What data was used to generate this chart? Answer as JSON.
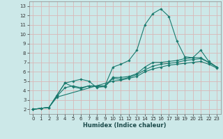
{
  "xlabel": "Humidex (Indice chaleur)",
  "ylabel": "",
  "xlim": [
    -0.5,
    23.5
  ],
  "ylim": [
    1.5,
    13.5
  ],
  "xticks": [
    0,
    1,
    2,
    3,
    4,
    5,
    6,
    7,
    8,
    9,
    10,
    11,
    12,
    13,
    14,
    15,
    16,
    17,
    18,
    19,
    20,
    21,
    22,
    23
  ],
  "yticks": [
    2,
    3,
    4,
    5,
    6,
    7,
    8,
    9,
    10,
    11,
    12,
    13
  ],
  "bg_color": "#cce8e8",
  "grid_color": "#d8b8b8",
  "line_color": "#1a7a6e",
  "series": [
    {
      "x": [
        0,
        1,
        2,
        3,
        4,
        5,
        6,
        7,
        8,
        9,
        10,
        11,
        12,
        13,
        14,
        15,
        16,
        17,
        18,
        19,
        20,
        21,
        22,
        23
      ],
      "y": [
        2.0,
        2.1,
        2.2,
        3.5,
        4.8,
        5.0,
        5.2,
        5.0,
        4.3,
        4.5,
        6.5,
        6.8,
        7.2,
        8.3,
        11.0,
        12.2,
        12.7,
        11.9,
        9.3,
        7.6,
        7.5,
        8.3,
        7.1,
        6.5
      ]
    },
    {
      "x": [
        0,
        1,
        2,
        3,
        4,
        5,
        6,
        7,
        8,
        9,
        10,
        11,
        12,
        13,
        14,
        15,
        16,
        17,
        18,
        19,
        20,
        21,
        22,
        23
      ],
      "y": [
        2.0,
        2.1,
        2.2,
        3.5,
        4.8,
        4.4,
        4.2,
        4.5,
        4.5,
        4.5,
        5.4,
        5.4,
        5.5,
        5.8,
        6.5,
        7.0,
        7.0,
        7.1,
        7.2,
        7.4,
        7.5,
        7.5,
        7.0,
        6.5
      ]
    },
    {
      "x": [
        0,
        1,
        2,
        3,
        4,
        5,
        6,
        7,
        8,
        9,
        10,
        11,
        12,
        13,
        14,
        15,
        16,
        17,
        18,
        19,
        20,
        21,
        22,
        23
      ],
      "y": [
        2.0,
        2.1,
        2.2,
        3.4,
        4.3,
        4.5,
        4.3,
        4.5,
        4.4,
        4.4,
        5.3,
        5.2,
        5.4,
        5.7,
        6.2,
        6.6,
        6.8,
        6.9,
        7.0,
        7.2,
        7.3,
        7.4,
        7.0,
        6.5
      ]
    },
    {
      "x": [
        0,
        2,
        3,
        10,
        11,
        12,
        13,
        14,
        15,
        16,
        17,
        18,
        19,
        20,
        21,
        22,
        23
      ],
      "y": [
        2.0,
        2.2,
        3.3,
        5.0,
        5.1,
        5.3,
        5.5,
        6.0,
        6.3,
        6.5,
        6.7,
        6.8,
        6.9,
        7.0,
        7.1,
        6.8,
        6.4
      ]
    }
  ]
}
